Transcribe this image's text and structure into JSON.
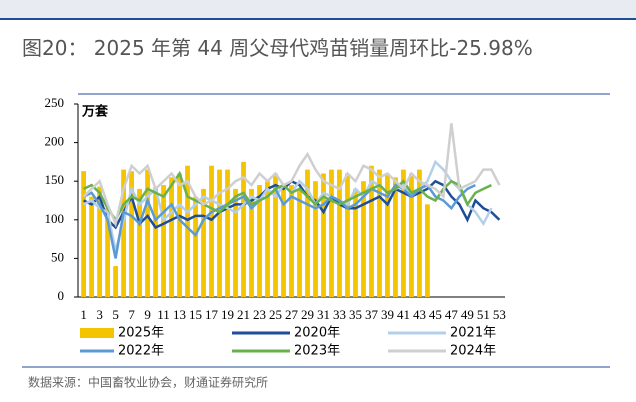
{
  "chart_data": {
    "type": "bar_line",
    "title": "图20：  2025 年第 44 周父母代鸡苗销量周环比-25.98%",
    "unit_label": "万套",
    "source": "数据来源：中国畜牧业协会，财通证券研究所",
    "x": [
      1,
      2,
      3,
      4,
      5,
      6,
      7,
      8,
      9,
      10,
      11,
      12,
      13,
      14,
      15,
      16,
      17,
      18,
      19,
      20,
      21,
      22,
      23,
      24,
      25,
      26,
      27,
      28,
      29,
      30,
      31,
      32,
      33,
      34,
      35,
      36,
      37,
      38,
      39,
      40,
      41,
      42,
      43,
      44,
      45,
      46,
      47,
      48,
      49,
      50,
      51,
      52,
      53
    ],
    "xlim": [
      0.3,
      53.7
    ],
    "xticks": [
      1,
      3,
      5,
      7,
      9,
      11,
      13,
      15,
      17,
      19,
      21,
      23,
      25,
      27,
      29,
      31,
      33,
      35,
      37,
      39,
      41,
      43,
      45,
      47,
      49,
      51,
      53
    ],
    "ylim": [
      0,
      250
    ],
    "yticks": [
      0,
      50,
      100,
      150,
      200,
      250
    ],
    "series": [
      {
        "name": "2025年",
        "kind": "bar",
        "color": "#f5c400",
        "values": [
          163,
          130,
          143,
          115,
          40,
          165,
          163,
          140,
          165,
          142,
          145,
          155,
          160,
          170,
          130,
          140,
          170,
          165,
          165,
          140,
          175,
          140,
          145,
          150,
          160,
          145,
          145,
          140,
          165,
          150,
          160,
          165,
          165,
          160,
          140,
          150,
          170,
          165,
          160,
          155,
          165,
          160,
          165,
          120,
          null,
          null,
          null,
          null,
          null,
          null,
          null,
          null,
          null
        ]
      },
      {
        "name": "2020年",
        "kind": "line",
        "color": "#1f4e96",
        "values": [
          125,
          120,
          130,
          100,
          90,
          110,
          130,
          95,
          105,
          90,
          95,
          100,
          105,
          100,
          105,
          105,
          100,
          110,
          115,
          120,
          120,
          125,
          130,
          140,
          145,
          140,
          150,
          145,
          130,
          125,
          110,
          130,
          120,
          115,
          115,
          120,
          125,
          130,
          120,
          140,
          135,
          130,
          135,
          140,
          150,
          145,
          130,
          120,
          100,
          125,
          115,
          110,
          100
        ]
      },
      {
        "name": "2021年",
        "kind": "line",
        "color": "#b4cfea",
        "values": [
          120,
          125,
          115,
          110,
          60,
          100,
          140,
          120,
          130,
          140,
          100,
          110,
          120,
          110,
          120,
          130,
          125,
          120,
          115,
          110,
          120,
          130,
          125,
          140,
          130,
          145,
          135,
          150,
          140,
          120,
          135,
          130,
          125,
          120,
          140,
          130,
          150,
          145,
          135,
          140,
          145,
          130,
          140,
          150,
          175,
          165,
          150,
          140,
          120,
          110,
          95,
          115,
          null
        ]
      },
      {
        "name": "2022年",
        "kind": "line",
        "color": "#5b9bd5",
        "values": [
          130,
          135,
          120,
          100,
          50,
          110,
          105,
          95,
          125,
          100,
          110,
          120,
          100,
          90,
          80,
          100,
          110,
          115,
          120,
          125,
          130,
          115,
          125,
          130,
          140,
          120,
          130,
          125,
          120,
          115,
          120,
          130,
          125,
          115,
          120,
          130,
          140,
          135,
          130,
          145,
          140,
          130,
          140,
          145,
          130,
          125,
          115,
          130,
          140,
          145,
          null,
          null,
          null
        ]
      },
      {
        "name": "2023年",
        "kind": "line",
        "color": "#6ab04c",
        "values": [
          140,
          145,
          135,
          115,
          100,
          120,
          130,
          125,
          140,
          135,
          130,
          145,
          160,
          130,
          125,
          120,
          115,
          110,
          120,
          130,
          135,
          120,
          125,
          130,
          140,
          145,
          135,
          140,
          130,
          120,
          130,
          125,
          120,
          125,
          130,
          135,
          140,
          145,
          135,
          140,
          150,
          135,
          140,
          130,
          125,
          140,
          150,
          145,
          120,
          135,
          140,
          145,
          null
        ]
      },
      {
        "name": "2024年",
        "kind": "line",
        "color": "#cfcfcf",
        "values": [
          130,
          140,
          150,
          120,
          95,
          140,
          170,
          160,
          170,
          140,
          150,
          160,
          145,
          150,
          130,
          120,
          125,
          135,
          140,
          150,
          155,
          145,
          160,
          150,
          160,
          145,
          150,
          170,
          185,
          165,
          150,
          145,
          140,
          160,
          150,
          170,
          165,
          155,
          160,
          150,
          140,
          160,
          150,
          145,
          140,
          130,
          225,
          140,
          145,
          150,
          165,
          165,
          145
        ]
      }
    ]
  }
}
